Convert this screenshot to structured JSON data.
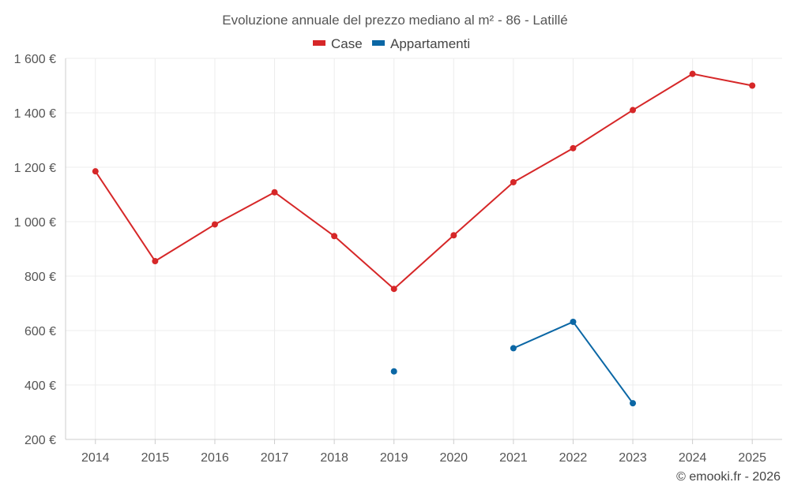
{
  "chart_data": {
    "type": "line",
    "title": "Evoluzione annuale del prezzo mediano al m² - 86 - Latillé",
    "categories": [
      "2014",
      "2015",
      "2016",
      "2017",
      "2018",
      "2019",
      "2020",
      "2021",
      "2022",
      "2023",
      "2024",
      "2025"
    ],
    "y_ticks": [
      "200 €",
      "400 €",
      "600 €",
      "800 €",
      "1 000 €",
      "1 200 €",
      "1 400 €",
      "1 600 €"
    ],
    "ylim": [
      200,
      1600
    ],
    "series": [
      {
        "name": "Case",
        "color": "#d62728",
        "values": [
          1185,
          855,
          990,
          1108,
          947,
          753,
          950,
          1145,
          1270,
          1410,
          1543,
          1500
        ]
      },
      {
        "name": "Appartamenti",
        "color": "#0b67a5",
        "values": [
          null,
          null,
          null,
          null,
          null,
          450,
          null,
          535,
          632,
          333,
          null,
          null
        ]
      }
    ],
    "grid": true,
    "legend": "top-center"
  },
  "footer": {
    "credit": "© emooki.fr - 2026"
  }
}
